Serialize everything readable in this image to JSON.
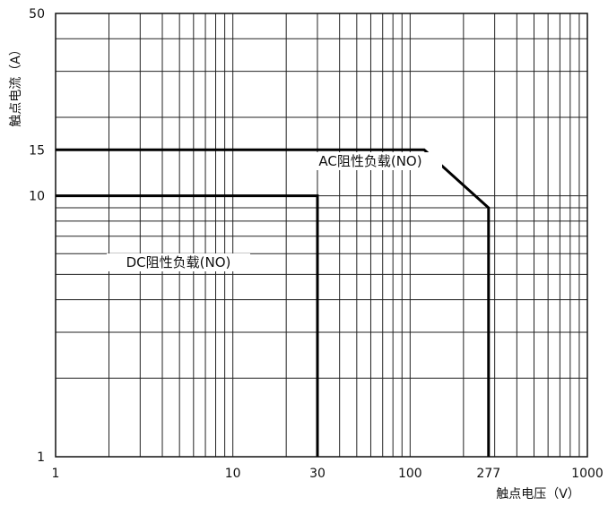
{
  "chart_data": {
    "type": "line",
    "xlabel": "触点电压（V）",
    "ylabel": "触点电流（A）",
    "x_scale": "log",
    "y_scale": "log",
    "xlim": [
      1,
      1000
    ],
    "ylim": [
      1,
      50
    ],
    "grid": true,
    "x_ticks": [
      {
        "value": 1,
        "label": "1"
      },
      {
        "value": 10,
        "label": "10"
      },
      {
        "value": 30,
        "label": "30"
      },
      {
        "value": 100,
        "label": "100"
      },
      {
        "value": 277,
        "label": "277"
      },
      {
        "value": 1000,
        "label": "1000"
      }
    ],
    "y_ticks": [
      {
        "value": 1,
        "label": "1"
      },
      {
        "value": 10,
        "label": "10"
      },
      {
        "value": 15,
        "label": "15"
      },
      {
        "value": 50,
        "label": "50"
      }
    ],
    "series": [
      {
        "name": "AC阻性负载(NO)",
        "points": [
          [
            1,
            15
          ],
          [
            120,
            15
          ],
          [
            277,
            9
          ],
          [
            277,
            1
          ]
        ]
      },
      {
        "name": "DC阻性负载(NO)",
        "points": [
          [
            1,
            10
          ],
          [
            30,
            10
          ],
          [
            30,
            1
          ]
        ]
      }
    ]
  }
}
